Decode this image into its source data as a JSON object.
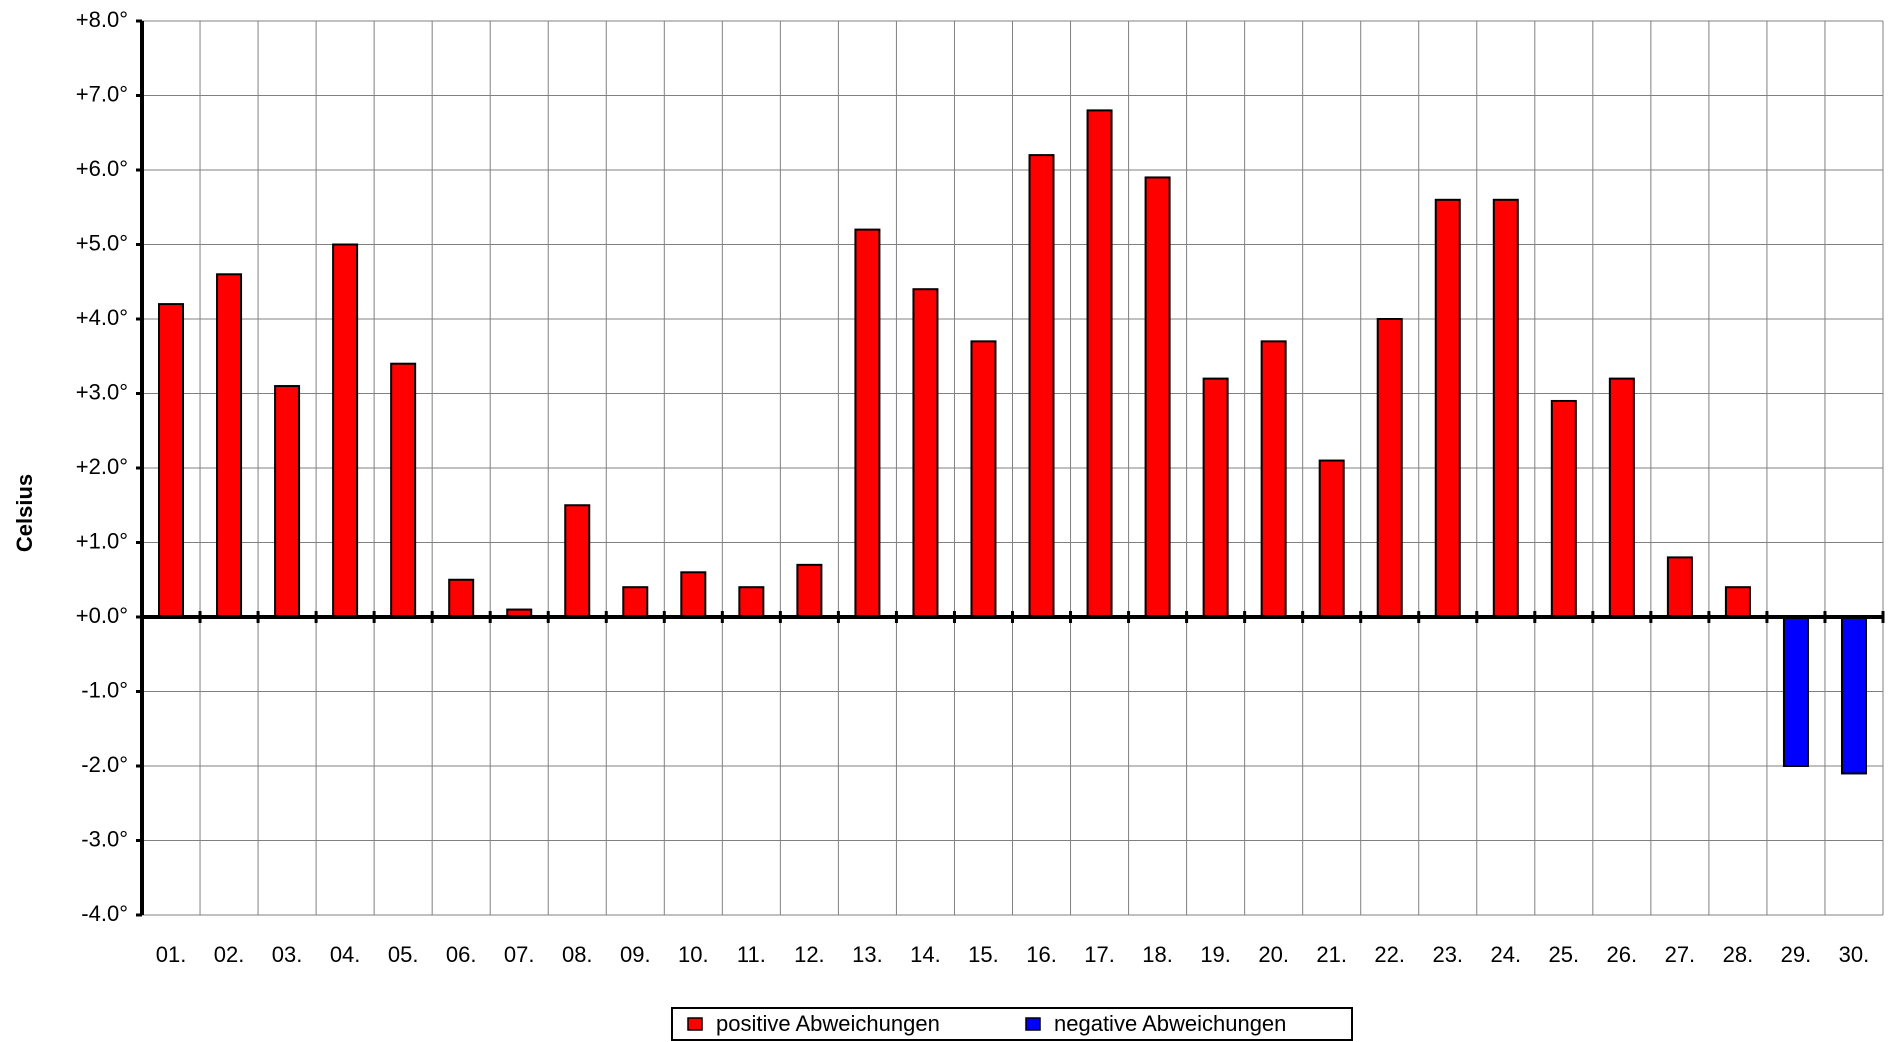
{
  "chart_data": {
    "type": "bar",
    "y_label": "Celsius",
    "categories": [
      "01.",
      "02.",
      "03.",
      "04.",
      "05.",
      "06.",
      "07.",
      "08.",
      "09.",
      "10.",
      "11.",
      "12.",
      "13.",
      "14.",
      "15.",
      "16.",
      "17.",
      "18.",
      "19.",
      "20.",
      "21.",
      "22.",
      "23.",
      "24.",
      "25.",
      "26.",
      "27.",
      "28.",
      "29.",
      "30."
    ],
    "series": [
      {
        "name": "positive Abweichungen",
        "color": "#ff0000",
        "values": [
          4.2,
          4.6,
          3.1,
          5.0,
          3.4,
          0.5,
          0.1,
          1.5,
          0.4,
          0.6,
          0.4,
          0.7,
          5.2,
          4.4,
          3.7,
          6.2,
          6.8,
          5.9,
          3.2,
          3.7,
          2.1,
          4.0,
          5.6,
          5.6,
          2.9,
          3.2,
          0.8,
          0.4,
          null,
          null
        ]
      },
      {
        "name": "negative Abweichungen",
        "color": "#0000ff",
        "values": [
          null,
          null,
          null,
          null,
          null,
          null,
          null,
          null,
          null,
          null,
          null,
          null,
          null,
          null,
          null,
          null,
          null,
          null,
          null,
          null,
          null,
          null,
          null,
          null,
          null,
          null,
          null,
          null,
          -2.0,
          -2.1
        ]
      }
    ],
    "ylim": [
      -4,
      8
    ],
    "yticks": [
      {
        "value": -4,
        "label": "-4.0°"
      },
      {
        "value": -3,
        "label": "-3.0°"
      },
      {
        "value": -2,
        "label": "-2.0°"
      },
      {
        "value": -1,
        "label": "-1.0°"
      },
      {
        "value": 0,
        "label": "+0.0°"
      },
      {
        "value": 1,
        "label": "+1.0°"
      },
      {
        "value": 2,
        "label": "+2.0°"
      },
      {
        "value": 3,
        "label": "+3.0°"
      },
      {
        "value": 4,
        "label": "+4.0°"
      },
      {
        "value": 5,
        "label": "+5.0°"
      },
      {
        "value": 6,
        "label": "+6.0°"
      },
      {
        "value": 7,
        "label": "+7.0°"
      },
      {
        "value": 8,
        "label": "+8.0°"
      }
    ],
    "grid": true,
    "legend": "bottom"
  }
}
